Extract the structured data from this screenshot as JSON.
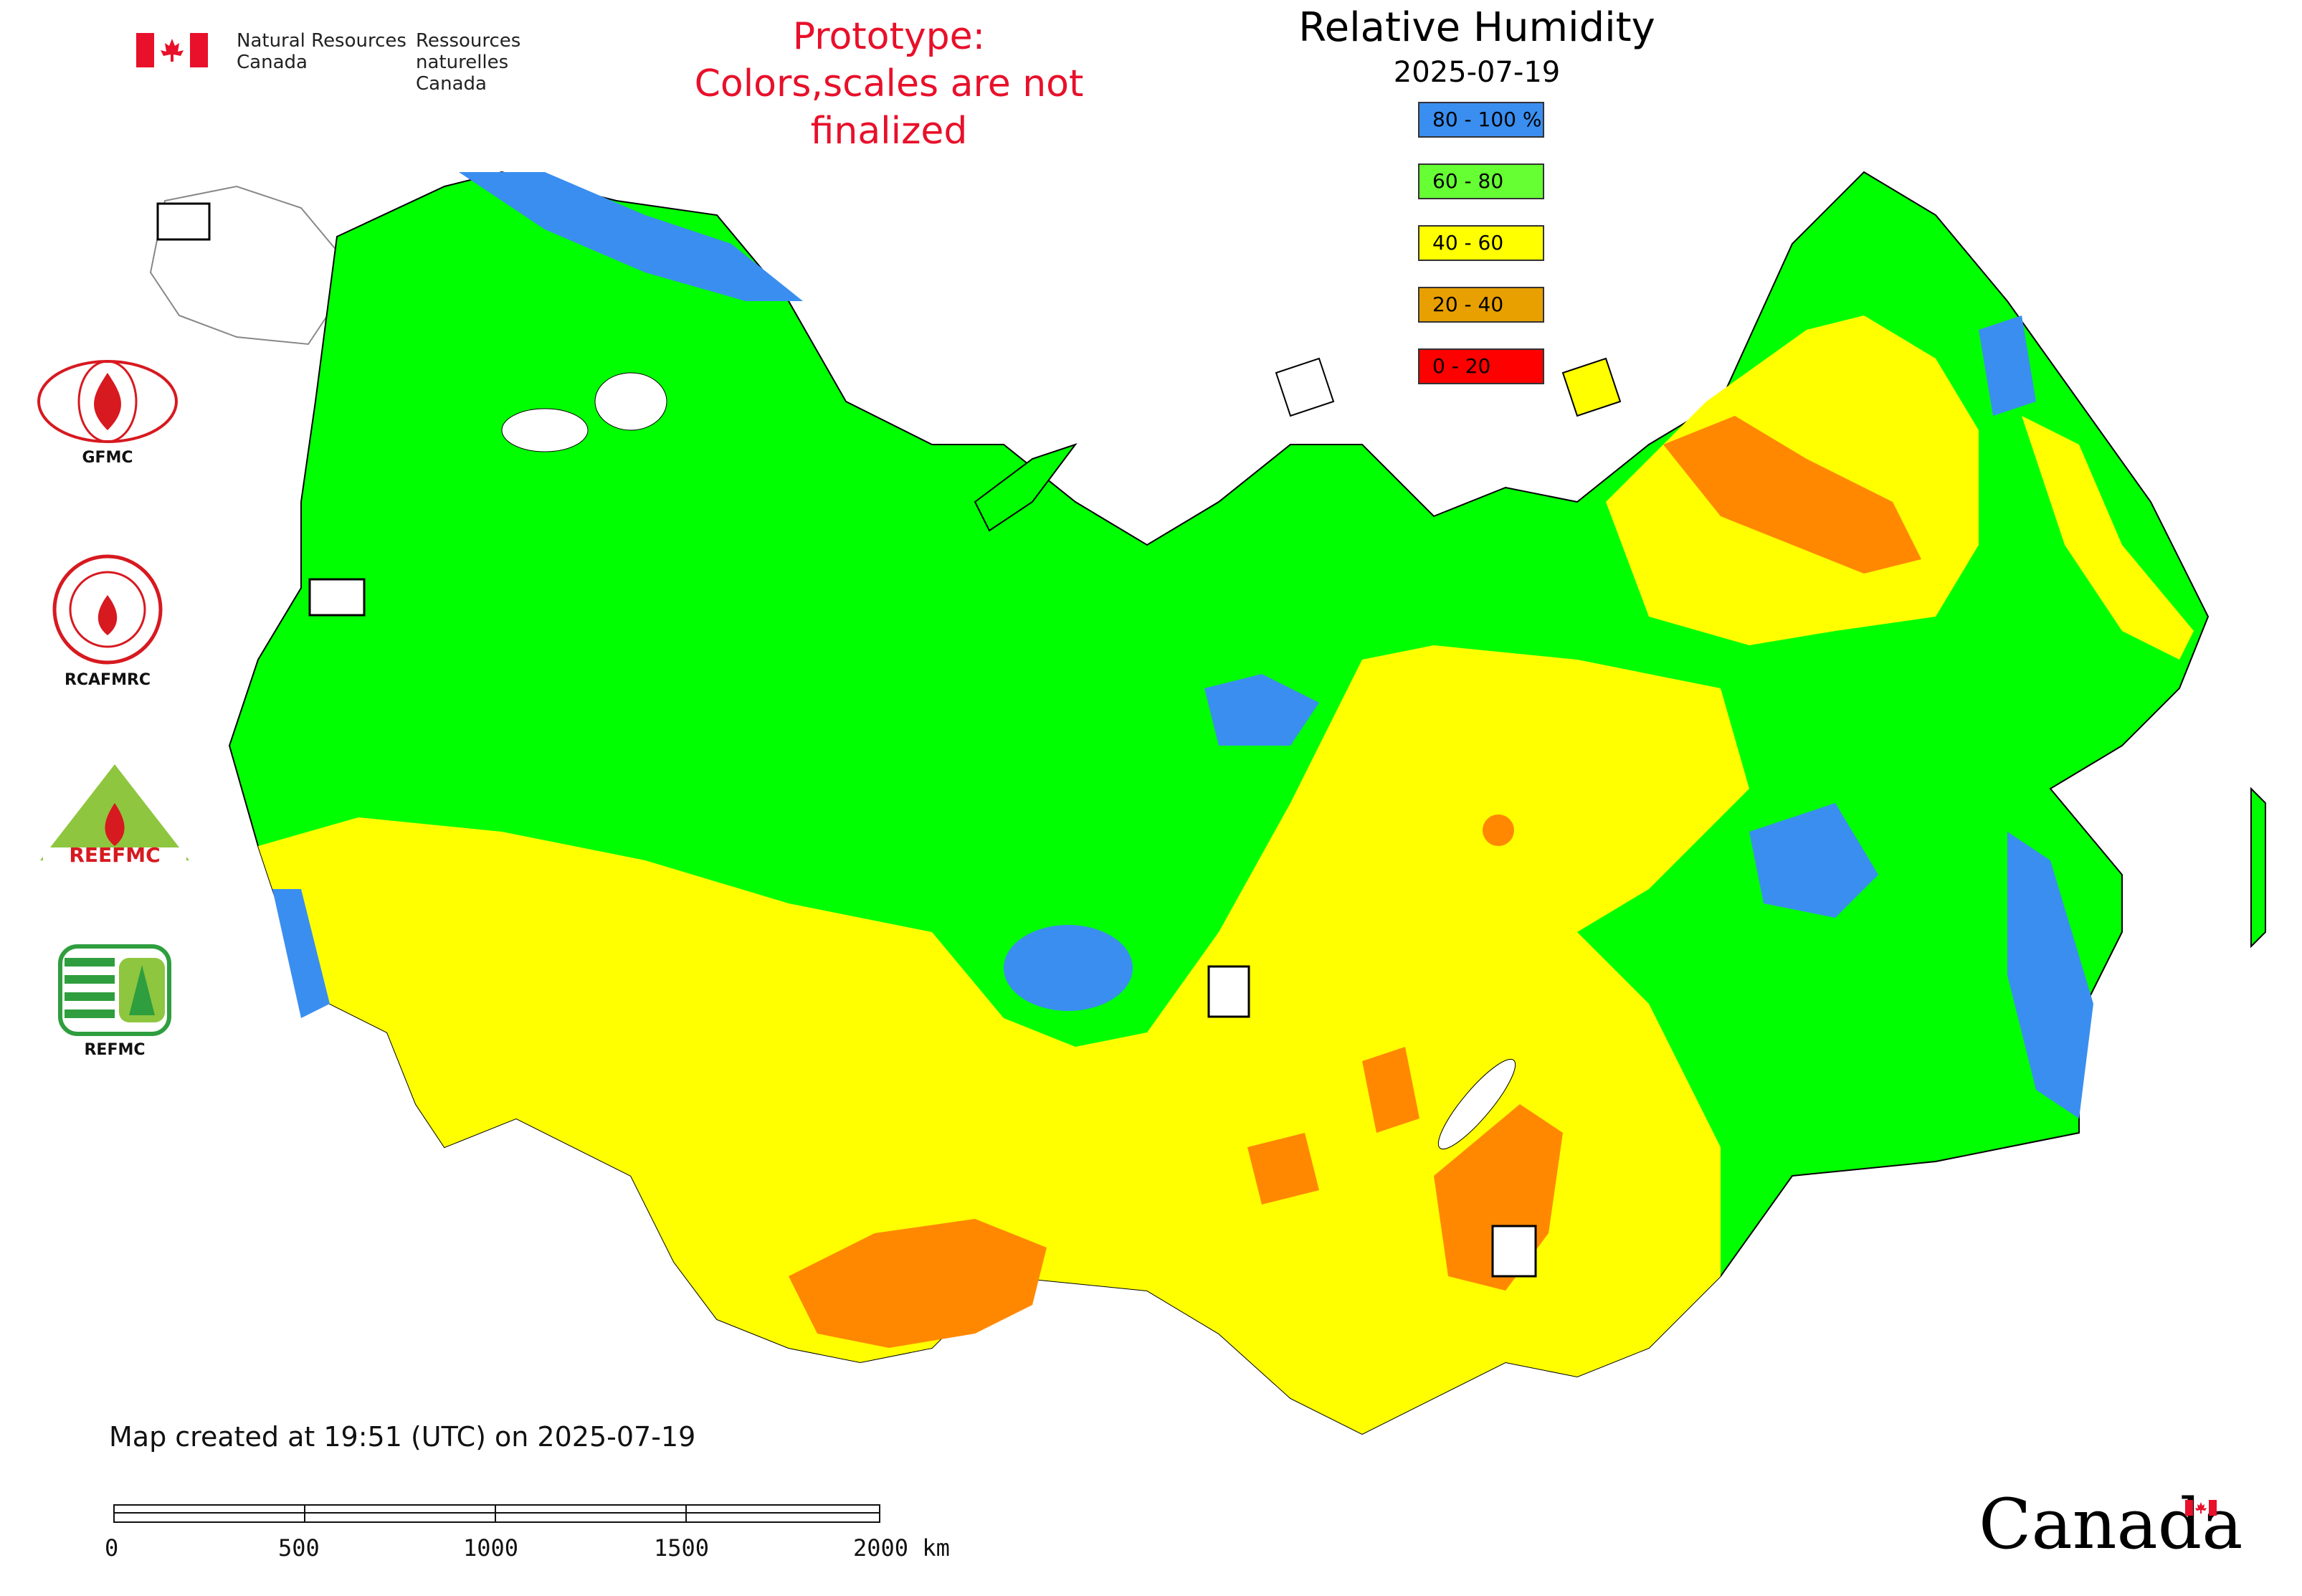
{
  "header": {
    "org_en_1": "Natural Resources",
    "org_en_2": "Canada",
    "org_fr_1": "Ressources naturelles",
    "org_fr_2": "Canada",
    "prototype_line1": "Prototype:",
    "prototype_line2": "Colors,scales are not finalized"
  },
  "map": {
    "title": "Relative Humidity",
    "date": "2025-07-19",
    "legend": [
      {
        "label": "80 - 100 %",
        "color": "#3a8ef0"
      },
      {
        "label": "60 - 80",
        "color": "#66ff33"
      },
      {
        "label": "40 - 60",
        "color": "#ffff00"
      },
      {
        "label": "20 - 40",
        "color": "#e8a000"
      },
      {
        "label": "0 - 20",
        "color": "#ff0000"
      }
    ],
    "colors": {
      "green": "#00ff00",
      "yellow": "#ffff00",
      "orange": "#ff8800",
      "blue": "#3a8ef0"
    }
  },
  "side_logos": [
    {
      "label": "GFMC"
    },
    {
      "label": "RCAFMRC"
    },
    {
      "label": "REEFMC"
    },
    {
      "label": "REFMC"
    }
  ],
  "footer": {
    "created": "Map created at 19:51 (UTC) on 2025-07-19",
    "scale_labels": [
      "0",
      "500",
      "1000",
      "1500",
      "2000 km"
    ],
    "wordmark": "Canada"
  }
}
